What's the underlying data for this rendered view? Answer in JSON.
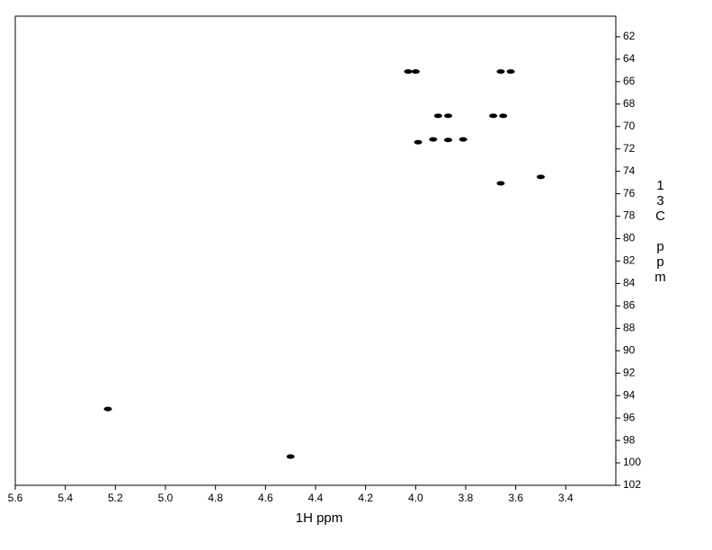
{
  "chart_data": {
    "type": "scatter",
    "x_label": "1H ppm",
    "y_label": "13C ppm",
    "x": [
      4.03,
      4.0,
      3.66,
      3.62,
      3.91,
      3.87,
      3.69,
      3.65,
      3.99,
      3.93,
      3.87,
      3.81,
      3.66,
      3.5,
      5.23,
      4.5
    ],
    "values": [
      65.1,
      65.1,
      65.1,
      65.1,
      69.05,
      69.05,
      69.05,
      69.05,
      71.4,
      71.15,
      71.2,
      71.15,
      75.07,
      74.5,
      95.2,
      99.44
    ],
    "color": "#000000",
    "xlim": [
      5.6,
      3.2
    ],
    "xticks": [
      5.6,
      5.4,
      5.2,
      {
        "value": 5.0,
        "label": "5.0"
      },
      4.8,
      4.6,
      4.4,
      4.2,
      {
        "value": 4.0,
        "label": "4.0"
      },
      3.8,
      3.6,
      3.4
    ],
    "ylim": [
      60.16,
      102
    ],
    "yticks": [
      62,
      64,
      66,
      68,
      70,
      72,
      74,
      76,
      78,
      80,
      82,
      84,
      86,
      88,
      90,
      92,
      94,
      96,
      98,
      100,
      102
    ],
    "grid": false
  }
}
